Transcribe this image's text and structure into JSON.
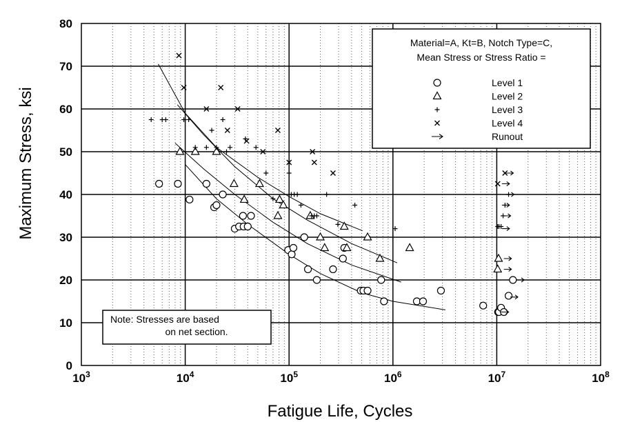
{
  "chart_data": {
    "type": "scatter",
    "title": "",
    "xlabel": "Fatigue Life, Cycles",
    "ylabel": "Maximum Stress, ksi",
    "x_scale": "log",
    "xlim": [
      1000,
      100000000
    ],
    "ylim": [
      0,
      80
    ],
    "grid": true,
    "x_ticks": [
      {
        "base": "10",
        "exp": "3"
      },
      {
        "base": "10",
        "exp": "4"
      },
      {
        "base": "10",
        "exp": "5"
      },
      {
        "base": "10",
        "exp": "6"
      },
      {
        "base": "10",
        "exp": "7"
      },
      {
        "base": "10",
        "exp": "8"
      }
    ],
    "y_ticks": [
      "0",
      "10",
      "20",
      "30",
      "40",
      "50",
      "60",
      "70",
      "80"
    ],
    "legend": {
      "placement": "top-right",
      "header": [
        "Material=A, Kt=B,  Notch Type=C,",
        "Mean Stress or Stress Ratio ="
      ],
      "entries": [
        {
          "symbol": "circle",
          "label": "Level 1"
        },
        {
          "symbol": "triangle",
          "label": "Level 2"
        },
        {
          "symbol": "plus",
          "label": "Level 3"
        },
        {
          "symbol": "cross",
          "label": "Level 4"
        },
        {
          "symbol": "arrow",
          "label": "Runout"
        }
      ]
    },
    "note": [
      "Note:   Stresses are based",
      "on net section."
    ],
    "series": [
      {
        "name": "Level 1",
        "marker": "circle",
        "points": [
          [
            5600,
            42.5
          ],
          [
            8500,
            42.5
          ],
          [
            11000,
            38.8
          ],
          [
            16000,
            42.5
          ],
          [
            19000,
            37
          ],
          [
            20000,
            37.5
          ],
          [
            23000,
            40
          ],
          [
            30000,
            32
          ],
          [
            33000,
            32.5
          ],
          [
            36000,
            35
          ],
          [
            36500,
            32.5
          ],
          [
            40000,
            32.5
          ],
          [
            43000,
            35
          ],
          [
            98000,
            27
          ],
          [
            106000,
            26
          ],
          [
            110000,
            27.5
          ],
          [
            140000,
            30
          ],
          [
            152000,
            22.5
          ],
          [
            185000,
            20
          ],
          [
            265000,
            22.5
          ],
          [
            330000,
            25
          ],
          [
            340000,
            27.5
          ],
          [
            490000,
            17.5
          ],
          [
            520000,
            17.5
          ],
          [
            570000,
            17.5
          ],
          [
            770000,
            20
          ],
          [
            820000,
            15
          ],
          [
            1700000,
            15
          ],
          [
            1950000,
            15
          ],
          [
            2900000,
            17.5
          ],
          [
            7400000,
            14
          ],
          [
            10300000,
            12.5
          ],
          [
            10500000,
            12.5
          ],
          [
            11000000,
            13.5
          ],
          [
            11700000,
            12.5
          ],
          [
            13000000,
            16.3
          ],
          [
            14300000,
            20
          ]
        ]
      },
      {
        "name": "Level 2",
        "marker": "triangle",
        "points": [
          [
            8900,
            50
          ],
          [
            12500,
            50
          ],
          [
            20000,
            50
          ],
          [
            29500,
            42.5
          ],
          [
            37000,
            38.8
          ],
          [
            52000,
            42.5
          ],
          [
            78000,
            35
          ],
          [
            81000,
            38.8
          ],
          [
            88000,
            37.5
          ],
          [
            160000,
            35
          ],
          [
            200000,
            30
          ],
          [
            220000,
            27.5
          ],
          [
            340000,
            32.5
          ],
          [
            360000,
            27.5
          ],
          [
            570000,
            30
          ],
          [
            750000,
            25
          ],
          [
            1450000,
            27.5
          ],
          [
            10200000,
            22.5
          ],
          [
            10400000,
            25
          ]
        ]
      },
      {
        "name": "Level 3",
        "marker": "plus",
        "points": [
          [
            4700,
            57.5
          ],
          [
            6000,
            57.5
          ],
          [
            6500,
            57.5
          ],
          [
            9700,
            57.5
          ],
          [
            10800,
            57.5
          ],
          [
            12500,
            51
          ],
          [
            16000,
            51
          ],
          [
            18000,
            55
          ],
          [
            20000,
            51
          ],
          [
            23000,
            57.5
          ],
          [
            25000,
            50
          ],
          [
            27000,
            51
          ],
          [
            38000,
            53
          ],
          [
            48000,
            51
          ],
          [
            60000,
            45
          ],
          [
            70000,
            39
          ],
          [
            100000,
            45
          ],
          [
            105000,
            40
          ],
          [
            112000,
            40
          ],
          [
            120000,
            40
          ],
          [
            130000,
            37.5
          ],
          [
            165000,
            35
          ],
          [
            175000,
            35
          ],
          [
            185000,
            35
          ],
          [
            230000,
            40
          ],
          [
            295000,
            33
          ],
          [
            430000,
            37.5
          ],
          [
            1050000,
            32
          ],
          [
            10200000,
            32.5
          ],
          [
            10500000,
            32.5
          ],
          [
            11000000,
            32.5
          ],
          [
            11500000,
            35
          ],
          [
            12000000,
            37.5
          ],
          [
            13000000,
            40
          ]
        ]
      },
      {
        "name": "Level 4",
        "marker": "cross",
        "points": [
          [
            8700,
            72.5
          ],
          [
            9700,
            65
          ],
          [
            16000,
            60
          ],
          [
            22000,
            65
          ],
          [
            25500,
            55
          ],
          [
            32000,
            60
          ],
          [
            39000,
            52.5
          ],
          [
            56000,
            50
          ],
          [
            78000,
            55
          ],
          [
            100000,
            47.5
          ],
          [
            168000,
            50
          ],
          [
            175000,
            47.5
          ],
          [
            265000,
            45
          ],
          [
            10200000,
            42.5
          ],
          [
            12000000,
            45
          ]
        ]
      },
      {
        "name": "Runout",
        "marker": "arrow",
        "points": [
          [
            11000000,
            12.5
          ],
          [
            11200000,
            32
          ],
          [
            11200000,
            37.5
          ],
          [
            11500000,
            35
          ],
          [
            11200000,
            42.5
          ],
          [
            11700000,
            25
          ],
          [
            11700000,
            22.5
          ],
          [
            12200000,
            45
          ],
          [
            12400000,
            40
          ],
          [
            13500000,
            16
          ],
          [
            15500000,
            20
          ]
        ]
      }
    ],
    "fit_curves": [
      {
        "points": [
          [
            5500,
            70.5
          ],
          [
            10000,
            59
          ],
          [
            20000,
            51
          ],
          [
            50000,
            44
          ],
          [
            100000,
            39.5
          ],
          [
            200000,
            35.5
          ],
          [
            510000,
            31.5
          ]
        ]
      },
      {
        "points": [
          [
            8400,
            61
          ],
          [
            15000,
            54
          ],
          [
            30000,
            46.5
          ],
          [
            70000,
            39
          ],
          [
            150000,
            34
          ],
          [
            400000,
            28.5
          ],
          [
            1100000,
            24
          ]
        ]
      },
      {
        "points": [
          [
            8000,
            52
          ],
          [
            15000,
            46
          ],
          [
            30000,
            40
          ],
          [
            70000,
            33.5
          ],
          [
            150000,
            28.5
          ],
          [
            400000,
            23.5
          ],
          [
            1200000,
            19.5
          ]
        ]
      },
      {
        "points": [
          [
            10000,
            47
          ],
          [
            20000,
            39
          ],
          [
            40000,
            33
          ],
          [
            100000,
            26
          ],
          [
            200000,
            21.5
          ],
          [
            500000,
            17
          ],
          [
            1000000,
            15
          ],
          [
            3200000,
            13
          ]
        ]
      }
    ]
  }
}
